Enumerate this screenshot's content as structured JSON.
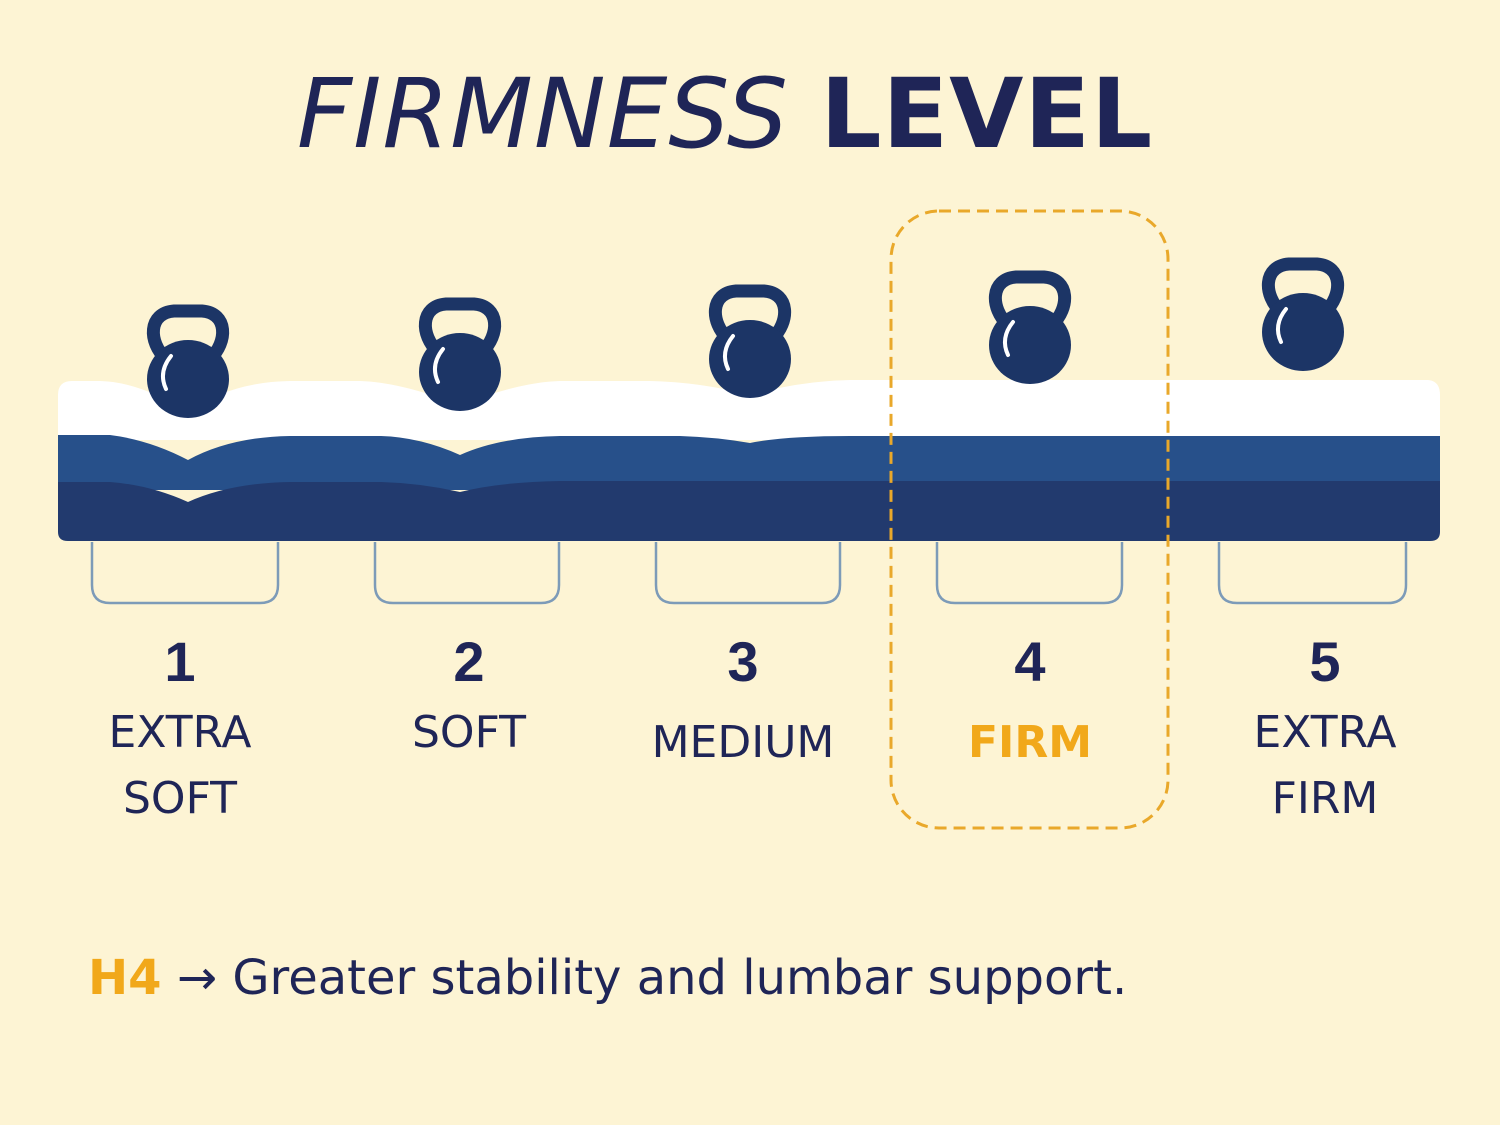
{
  "title": {
    "part1": "FIRMNESS",
    "part2": "LEVEL"
  },
  "levels": [
    {
      "number": "1",
      "label_lines": [
        "EXTRA",
        "SOFT"
      ]
    },
    {
      "number": "2",
      "label_lines": [
        "SOFT"
      ]
    },
    {
      "number": "3",
      "label_lines": [
        "MEDIUM"
      ]
    },
    {
      "number": "4",
      "label_lines": [
        "FIRM"
      ],
      "selected": true
    },
    {
      "number": "5",
      "label_lines": [
        "EXTRA",
        "FIRM"
      ]
    }
  ],
  "footer": {
    "code": "H4",
    "arrow": "→",
    "text": "Greater stability and lumbar support."
  },
  "colors": {
    "background": "#fdf4d4",
    "text": "#1f2557",
    "accent": "#f1a81a",
    "kettlebell": "#1c3566",
    "foam_mid": "#27508a",
    "foam_base": "#223a6e",
    "foam_top": "#ffffff"
  },
  "icons": {
    "weight": "kettlebell-icon",
    "arrow": "right-arrow-icon"
  }
}
